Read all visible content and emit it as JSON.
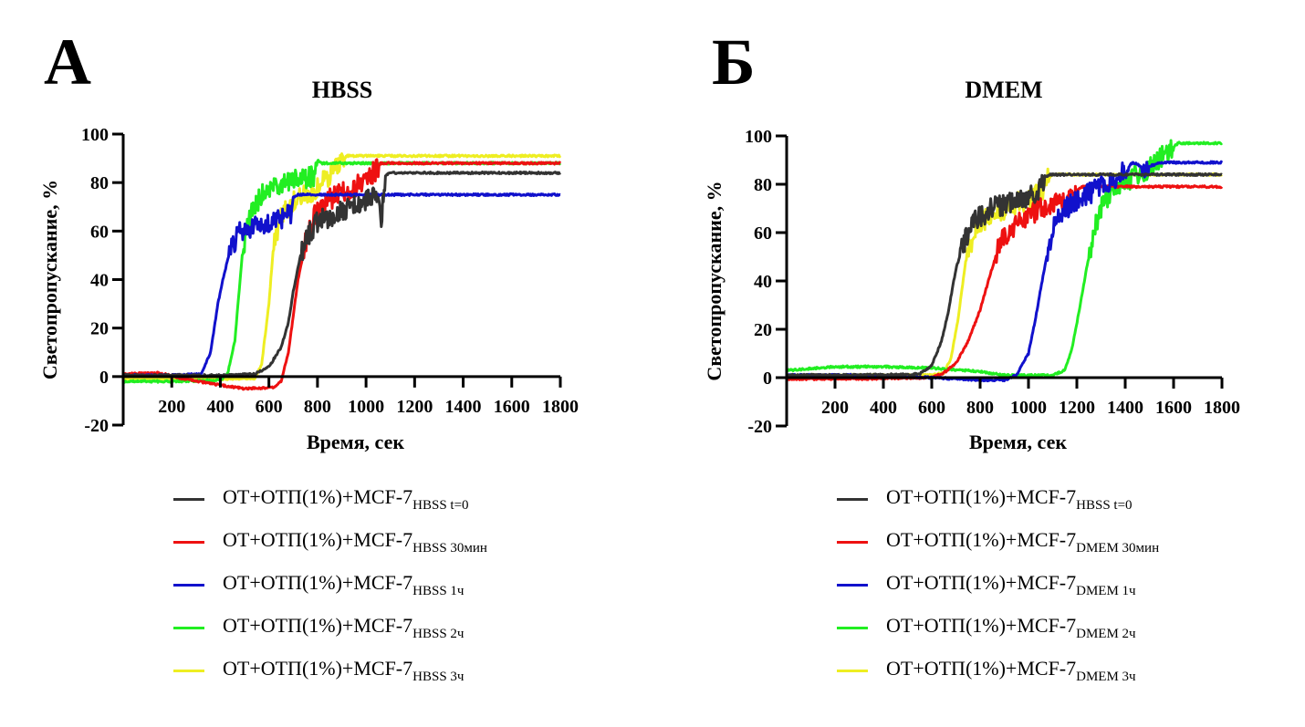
{
  "panels": [
    {
      "letter": "А",
      "title": "HBSS",
      "legend": [
        {
          "main": "ОТ+ОТП(1%)+MCF-7",
          "sub": "HBSS t=0",
          "color": "#333333"
        },
        {
          "main": "ОТ+ОТП(1%)+MCF-7",
          "sub": "HBSS 30мин",
          "color": "#ee1111"
        },
        {
          "main": "ОТ+ОТП(1%)+MCF-7",
          "sub": "HBSS 1ч",
          "color": "#1111cc"
        },
        {
          "main": "ОТ+ОТП(1%)+MCF-7",
          "sub": "HBSS 2ч",
          "color": "#22ee22"
        },
        {
          "main": "ОТ+ОТП(1%)+MCF-7",
          "sub": "HBSS 3ч",
          "color": "#eeee22"
        }
      ]
    },
    {
      "letter": "Б",
      "title": "DMEM",
      "legend": [
        {
          "main": "ОТ+ОТП(1%)+MCF-7",
          "sub": "HBSS t=0",
          "color": "#333333"
        },
        {
          "main": "ОТ+ОТП(1%)+MCF-7",
          "sub": "DMEM 30мин",
          "color": "#ee1111"
        },
        {
          "main": "ОТ+ОТП(1%)+MCF-7",
          "sub": "DMEM 1ч",
          "color": "#1111cc"
        },
        {
          "main": "ОТ+ОТП(1%)+MCF-7",
          "sub": "DMEM 2ч",
          "color": "#22ee22"
        },
        {
          "main": "ОТ+ОТП(1%)+MCF-7",
          "sub": "DMEM 3ч",
          "color": "#eeee22"
        }
      ]
    }
  ],
  "chart_data": [
    {
      "type": "line",
      "title": "HBSS",
      "xlabel": "Время, сек",
      "ylabel": "Светопропускание, %",
      "xlim": [
        0,
        1800
      ],
      "ylim": [
        -20,
        100
      ],
      "xticks": [
        200,
        400,
        600,
        800,
        1000,
        1200,
        1400,
        1600,
        1800
      ],
      "yticks": [
        -20,
        0,
        20,
        40,
        60,
        80,
        100
      ],
      "grid": false,
      "legend_position": "bottom",
      "series": [
        {
          "name": "ОТ+ОТП(1%)+MCF-7 HBSS t=0",
          "color": "#333333",
          "x": [
            0,
            200,
            400,
            540,
            600,
            650,
            680,
            700,
            730,
            760,
            800,
            900,
            1000,
            1050,
            1060,
            1080,
            1100,
            1800
          ],
          "y": [
            0.5,
            0.5,
            0.5,
            1,
            4,
            12,
            22,
            35,
            50,
            58,
            64,
            68,
            72,
            76,
            62,
            83,
            84,
            84
          ]
        },
        {
          "name": "ОТ+ОТП(1%)+MCF-7 HBSS 30мин",
          "color": "#ee1111",
          "x": [
            0,
            150,
            250,
            400,
            500,
            620,
            650,
            680,
            700,
            720,
            750,
            800,
            900,
            1000,
            1050,
            1060,
            1100,
            1800
          ],
          "y": [
            1,
            1.5,
            -1,
            -3.5,
            -5,
            -4.5,
            -2,
            10,
            25,
            40,
            55,
            70,
            76,
            81,
            86,
            88,
            88,
            88
          ]
        },
        {
          "name": "ОТ+ОТП(1%)+MCF-7 HBSS 1ч",
          "color": "#1111cc",
          "x": [
            0,
            200,
            320,
            360,
            390,
            410,
            440,
            480,
            550,
            650,
            690,
            700,
            720,
            1800
          ],
          "y": [
            0.5,
            0.5,
            1,
            10,
            30,
            40,
            52,
            60,
            62,
            65,
            67,
            74,
            75,
            75
          ]
        },
        {
          "name": "ОТ+ОТП(1%)+MCF-7 HBSS 2ч",
          "color": "#22ee22",
          "x": [
            0,
            200,
            400,
            430,
            460,
            490,
            520,
            550,
            600,
            700,
            790,
            800,
            820,
            1800
          ],
          "y": [
            -2,
            -2,
            -1.5,
            1,
            15,
            50,
            65,
            72,
            78,
            81,
            83,
            89,
            88,
            88
          ]
        },
        {
          "name": "ОТ+ОТП(1%)+MCF-7 HBSS 3ч",
          "color": "#eeee22",
          "x": [
            0,
            300,
            540,
            570,
            600,
            620,
            650,
            700,
            750,
            800,
            850,
            900,
            920,
            1800
          ],
          "y": [
            -1,
            -1,
            -1,
            5,
            30,
            55,
            66,
            72,
            75,
            78,
            83,
            88,
            91,
            91
          ]
        }
      ]
    },
    {
      "type": "line",
      "title": "DMEM",
      "xlabel": "Время, сек",
      "ylabel": "Светопропускание, %",
      "xlim": [
        0,
        1800
      ],
      "ylim": [
        -20,
        100
      ],
      "xticks": [
        200,
        400,
        600,
        800,
        1000,
        1200,
        1400,
        1600,
        1800
      ],
      "yticks": [
        -20,
        0,
        20,
        40,
        60,
        80,
        100
      ],
      "grid": false,
      "legend_position": "bottom",
      "series": [
        {
          "name": "ОТ+ОТП(1%)+MCF-7 HBSS t=0",
          "color": "#333333",
          "x": [
            0,
            300,
            550,
            600,
            640,
            670,
            700,
            730,
            780,
            850,
            950,
            1050,
            1070,
            1090,
            1800
          ],
          "y": [
            1,
            1,
            1.5,
            5,
            15,
            28,
            45,
            55,
            65,
            70,
            73,
            78,
            83,
            84,
            84
          ]
        },
        {
          "name": "ОТ+ОТП(1%)+MCF-7 DMEM 30мин",
          "color": "#ee1111",
          "x": [
            0,
            300,
            600,
            650,
            700,
            750,
            800,
            840,
            880,
            950,
            1050,
            1150,
            1200,
            1220,
            1800
          ],
          "y": [
            -0.5,
            -0.5,
            0,
            2,
            6,
            15,
            28,
            42,
            55,
            64,
            70,
            73,
            77,
            79,
            79
          ]
        },
        {
          "name": "ОТ+ОТП(1%)+MCF-7 DMEM 1ч",
          "color": "#1111cc",
          "x": [
            0,
            300,
            600,
            800,
            900,
            950,
            1000,
            1030,
            1060,
            1100,
            1150,
            1250,
            1350,
            1400,
            1430,
            1480,
            1550,
            1800
          ],
          "y": [
            1,
            1,
            0,
            -1,
            -1,
            1,
            10,
            25,
            42,
            62,
            70,
            76,
            82,
            86,
            89,
            87,
            89,
            89
          ]
        },
        {
          "name": "ОТ+ОТП(1%)+MCF-7 DMEM 2ч",
          "color": "#22ee22",
          "x": [
            0,
            200,
            400,
            600,
            800,
            900,
            1000,
            1100,
            1150,
            1180,
            1210,
            1240,
            1270,
            1300,
            1380,
            1450,
            1520,
            1580,
            1620,
            1800
          ],
          "y": [
            3,
            4.5,
            4.5,
            4,
            2.5,
            1,
            1,
            1,
            3,
            12,
            28,
            45,
            60,
            70,
            80,
            84,
            88,
            94,
            97,
            97
          ]
        },
        {
          "name": "ОТ+ОТП(1%)+MCF-7 DMEM 3ч",
          "color": "#eeee22",
          "x": [
            0,
            300,
            600,
            650,
            680,
            710,
            740,
            780,
            850,
            950,
            1050,
            1080,
            1100,
            1800
          ],
          "y": [
            1,
            1,
            1,
            2,
            8,
            25,
            48,
            62,
            68,
            72,
            76,
            82,
            84,
            84
          ]
        }
      ]
    }
  ]
}
